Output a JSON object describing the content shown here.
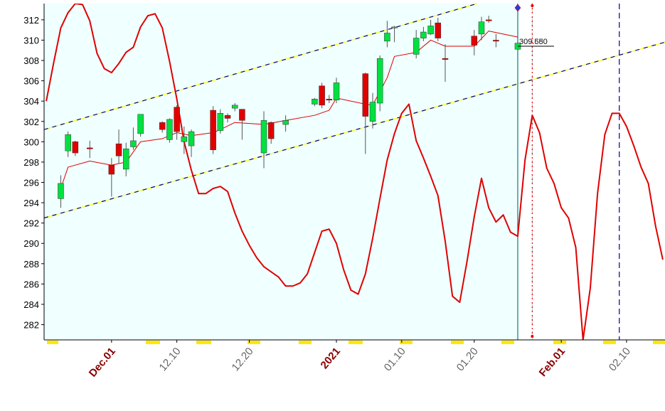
{
  "chart_data": {
    "type": "candlestick",
    "xlim": [
      -9.3,
      76.3
    ],
    "ylim": [
      280.5,
      313.6
    ],
    "yticks": [
      282,
      284,
      286,
      288,
      290,
      292,
      294,
      296,
      298,
      300,
      302,
      304,
      306,
      308,
      310,
      312
    ],
    "xticks": [
      {
        "value": 0,
        "label": "Dec.01"
      },
      {
        "value": 9,
        "label": "12.10"
      },
      {
        "value": 19,
        "label": "12.20"
      },
      {
        "value": 31,
        "label": "2021"
      },
      {
        "value": 40,
        "label": "01.10"
      },
      {
        "value": 50,
        "label": "01.20"
      },
      {
        "value": 62,
        "label": "Feb.01"
      },
      {
        "value": 71,
        "label": "02.10"
      }
    ],
    "major_xticks": [
      0,
      31,
      62
    ],
    "background": "#f0ffff",
    "up_color": "#00e040",
    "down_color": "#e00000",
    "candles": {
      "x": [
        -7,
        -6,
        -5,
        -3,
        0,
        1,
        2,
        3,
        4,
        7,
        8,
        9,
        10,
        11,
        14,
        15,
        16,
        17,
        18,
        21,
        22,
        24,
        28,
        29,
        30,
        31,
        35,
        36,
        37,
        38,
        39,
        42,
        43,
        44,
        45,
        46,
        50,
        51,
        52,
        53,
        56
      ],
      "open": [
        294.4,
        299.1,
        300.0,
        299.4,
        297.7,
        299.8,
        297.3,
        299.5,
        300.8,
        301.9,
        300.2,
        303.4,
        300.0,
        299.6,
        303.1,
        301.1,
        302.6,
        303.3,
        303.2,
        298.9,
        301.9,
        301.7,
        303.7,
        305.5,
        304.2,
        304.1,
        306.7,
        302.0,
        303.8,
        309.9,
        311.2,
        308.6,
        310.2,
        310.6,
        311.7,
        308.2,
        310.4,
        310.6,
        312.0,
        310.0,
        309.1
      ],
      "high": [
        296.7,
        301.0,
        300.1,
        300.1,
        298.4,
        301.2,
        299.9,
        301.4,
        302.7,
        302.0,
        302.3,
        303.6,
        301.5,
        301.2,
        303.5,
        303.2,
        302.8,
        303.8,
        303.2,
        303.0,
        302.0,
        302.6,
        304.3,
        305.8,
        304.6,
        306.3,
        306.8,
        304.8,
        308.5,
        311.9,
        311.4,
        311.0,
        311.3,
        312.0,
        312.2,
        309.6,
        311.0,
        312.3,
        312.4,
        310.6,
        309.9
      ],
      "low": [
        293.5,
        298.5,
        298.6,
        298.4,
        294.6,
        297.9,
        296.6,
        299.2,
        300.5,
        300.9,
        299.9,
        300.2,
        298.8,
        298.5,
        298.8,
        300.8,
        301.9,
        303.0,
        300.2,
        297.4,
        299.8,
        301.0,
        303.5,
        303.3,
        303.8,
        303.8,
        298.8,
        301.3,
        303.0,
        309.3,
        309.8,
        308.2,
        309.9,
        310.5,
        309.9,
        305.9,
        308.5,
        310.0,
        311.7,
        309.3,
        309.0
      ],
      "close": [
        295.9,
        300.7,
        298.9,
        299.3,
        296.8,
        298.6,
        299.3,
        300.1,
        302.7,
        301.2,
        302.2,
        301.0,
        300.5,
        301.0,
        299.2,
        302.8,
        302.3,
        303.6,
        302.1,
        302.1,
        300.3,
        302.1,
        304.2,
        303.6,
        304.1,
        305.8,
        302.5,
        303.9,
        308.2,
        310.7,
        311.3,
        310.2,
        310.8,
        311.4,
        310.2,
        308.1,
        309.5,
        311.8,
        311.9,
        309.9,
        309.7
      ]
    },
    "lines": [
      {
        "color": "#e00000",
        "width": 1,
        "x": [
          -7,
          -6,
          -3,
          0,
          2,
          4,
          7,
          9,
          11,
          14,
          15,
          17,
          21,
          24,
          28,
          30,
          31,
          35,
          36,
          38,
          39,
          42,
          44,
          46,
          50,
          52,
          56
        ],
        "values": [
          295.4,
          297.5,
          298.1,
          297.7,
          298.0,
          300.0,
          300.3,
          300.9,
          300.6,
          300.9,
          301.2,
          301.9,
          301.7,
          302.1,
          302.6,
          303.1,
          304.3,
          303.7,
          303.6,
          306.3,
          308.4,
          308.8,
          310.0,
          309.4,
          309.4,
          310.9,
          310.3
        ]
      },
      {
        "color": "#e00000",
        "width": 2,
        "x": [
          -9,
          -8,
          -7,
          -6,
          -5,
          -4,
          -3,
          -2,
          -1,
          0,
          1,
          2,
          3,
          4,
          5,
          6,
          7,
          8,
          9,
          10,
          11,
          12,
          13,
          14,
          15,
          16,
          17,
          18,
          19,
          20,
          21,
          22,
          23,
          24,
          25,
          26,
          27,
          28,
          29,
          30,
          31,
          32,
          33,
          34,
          35,
          36,
          37,
          38,
          39,
          40,
          41,
          42,
          43,
          44,
          45,
          46,
          47,
          48,
          49,
          50,
          51,
          52,
          53,
          54,
          55,
          56,
          57,
          58,
          59,
          60,
          61,
          62,
          63,
          64,
          65,
          66,
          67,
          68,
          69,
          70,
          71,
          72,
          73,
          74,
          75,
          76
        ],
        "values": [
          304.0,
          307.7,
          311.2,
          312.7,
          313.6,
          313.5,
          311.9,
          308.7,
          307.2,
          306.8,
          307.7,
          308.8,
          309.3,
          311.3,
          312.4,
          312.6,
          311.2,
          307.9,
          304.2,
          300.0,
          297.2,
          294.9,
          294.9,
          295.4,
          295.6,
          295.1,
          293.0,
          291.2,
          289.8,
          288.6,
          287.7,
          287.2,
          286.7,
          285.8,
          285.8,
          286.1,
          287.0,
          289.1,
          291.2,
          291.4,
          290.0,
          287.4,
          285.4,
          285.0,
          287.0,
          290.5,
          294.4,
          298.2,
          300.8,
          302.8,
          303.7,
          300.1,
          298.4,
          296.6,
          294.7,
          290.2,
          284.8,
          284.2,
          288.2,
          292.6,
          296.4,
          293.5,
          292.1,
          292.8,
          291.1,
          290.7,
          298.2,
          302.6,
          300.9,
          297.4,
          295.9,
          293.5,
          292.5,
          289.6,
          280.5,
          285.6,
          294.9,
          300.7,
          302.8,
          302.8,
          301.5,
          299.6,
          297.5,
          295.9,
          291.7,
          288.4
        ]
      }
    ],
    "trendlines": [
      {
        "x": [
          -9.3,
          50.4
        ],
        "values": [
          301.2,
          313.6
        ]
      },
      {
        "x": [
          -9.3,
          76.3
        ],
        "values": [
          292.5,
          309.8
        ]
      }
    ],
    "vlines": [
      {
        "x": 56,
        "color": "#008080",
        "style": "solid"
      },
      {
        "x": 58,
        "color": "#e00000",
        "style": "dotted"
      },
      {
        "x": 70,
        "color": "#00008b",
        "style": "dashed"
      }
    ],
    "annotations": [
      {
        "x": 56,
        "value": 309.55,
        "label": "309.550"
      },
      {
        "x": 56,
        "value": 309.68,
        "label": "309.680"
      }
    ],
    "annotation_line": {
      "x": [
        56,
        61
      ],
      "value": 309.4
    }
  }
}
